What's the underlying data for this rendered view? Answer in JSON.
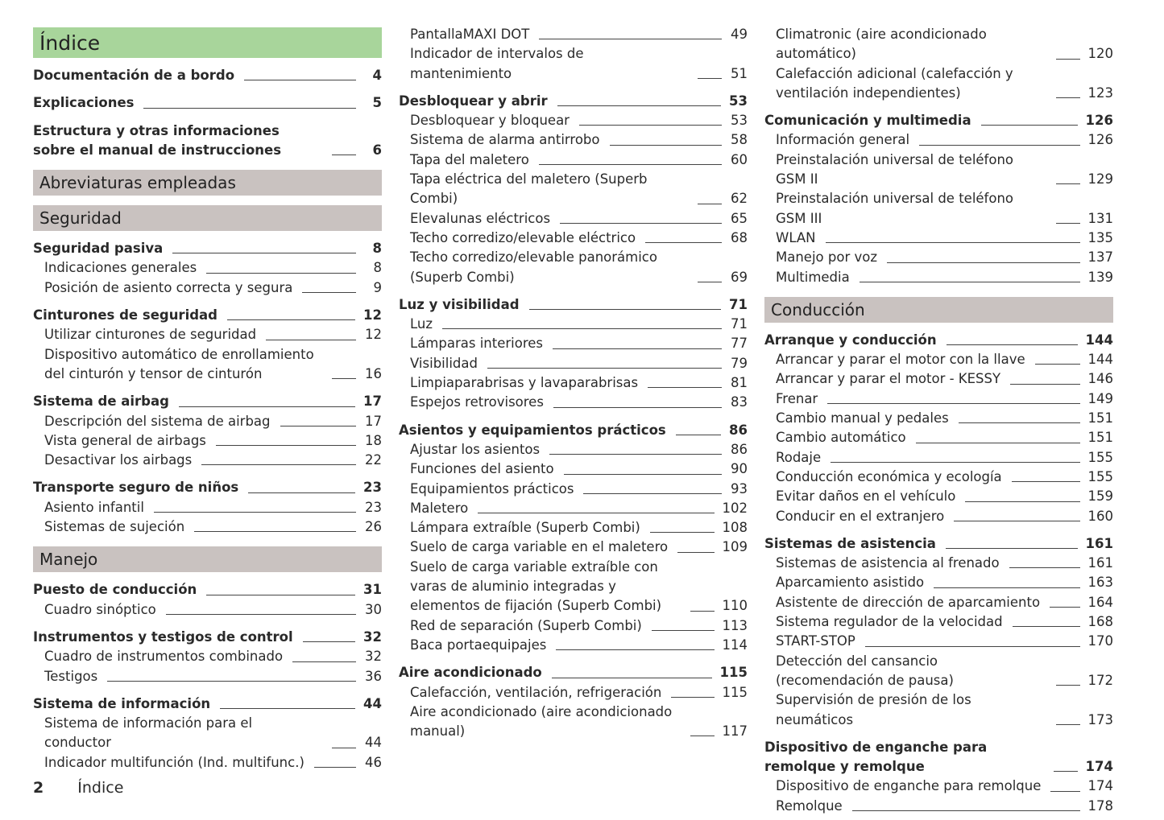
{
  "title": "Índice",
  "columns": [
    {
      "blocks": [
        {
          "group": "Documentación de a bordo",
          "page": "4"
        },
        {
          "group": "Explicaciones",
          "page": "5"
        },
        {
          "group": "Estructura y otras informaciones sobre el manual de instrucciones",
          "page": "6"
        },
        {
          "section": "Abreviaturas empleadas"
        },
        {
          "section": "Seguridad"
        },
        {
          "group": "Seguridad pasiva",
          "page": "8",
          "entries": [
            {
              "text": "Indicaciones generales",
              "page": "8"
            },
            {
              "text": "Posición de asiento correcta y segura",
              "page": "9"
            }
          ]
        },
        {
          "group": "Cinturones de seguridad",
          "page": "12",
          "entries": [
            {
              "text": "Utilizar cinturones de seguridad",
              "page": "12"
            },
            {
              "text": "Dispositivo automático de enrollamiento del cinturón y tensor de cinturón",
              "page": "16"
            }
          ]
        },
        {
          "group": "Sistema de airbag",
          "page": "17",
          "entries": [
            {
              "text": "Descripción del sistema de airbag",
              "page": "17"
            },
            {
              "text": "Vista general de airbags",
              "page": "18"
            },
            {
              "text": "Desactivar los airbags",
              "page": "22"
            }
          ]
        },
        {
          "group": "Transporte seguro de niños",
          "page": "23",
          "entries": [
            {
              "text": "Asiento infantil",
              "page": "23"
            },
            {
              "text": "Sistemas de sujeción",
              "page": "26"
            }
          ]
        },
        {
          "section": "Manejo"
        },
        {
          "group": "Puesto de conducción",
          "page": "31",
          "entries": [
            {
              "text": "Cuadro sinóptico",
              "page": "30"
            }
          ]
        },
        {
          "group": "Instrumentos y testigos de control",
          "page": "32",
          "entries": [
            {
              "text": "Cuadro de instrumentos combinado",
              "page": "32"
            },
            {
              "text": "Testigos",
              "page": "36"
            }
          ]
        },
        {
          "group": "Sistema de información",
          "page": "44",
          "entries": [
            {
              "text": "Sistema de información para el conductor",
              "page": "44"
            },
            {
              "text": "Indicador multifunción (Ind. multifunc.)",
              "page": "46"
            }
          ]
        }
      ]
    },
    {
      "blocks": [
        {
          "entries": [
            {
              "text": "PantallaMAXI DOT",
              "page": "49"
            },
            {
              "text": "Indicador de intervalos de mantenimiento",
              "page": "51"
            }
          ]
        },
        {
          "group": "Desbloquear y abrir",
          "page": "53",
          "entries": [
            {
              "text": "Desbloquear y bloquear",
              "page": "53"
            },
            {
              "text": "Sistema de alarma antirrobo",
              "page": "58"
            },
            {
              "text": "Tapa del maletero",
              "page": "60"
            },
            {
              "text": "Tapa eléctrica del maletero (Superb Combi)",
              "page": "62"
            },
            {
              "text": "Elevalunas eléctricos",
              "page": "65"
            },
            {
              "text": "Techo corredizo/elevable eléctrico",
              "page": "68"
            },
            {
              "text": "Techo corredizo/elevable panorámico (Superb Combi)",
              "page": "69"
            }
          ]
        },
        {
          "group": "Luz y visibilidad",
          "page": "71",
          "entries": [
            {
              "text": "Luz",
              "page": "71"
            },
            {
              "text": "Lámparas interiores",
              "page": "77"
            },
            {
              "text": "Visibilidad",
              "page": "79"
            },
            {
              "text": "Limpiaparabrisas y lavaparabrisas",
              "page": "81"
            },
            {
              "text": "Espejos retrovisores",
              "page": "83"
            }
          ]
        },
        {
          "group": "Asientos y equipamientos prácticos",
          "page": "86",
          "entries": [
            {
              "text": "Ajustar los asientos",
              "page": "86"
            },
            {
              "text": "Funciones del asiento",
              "page": "90"
            },
            {
              "text": "Equipamientos prácticos",
              "page": "93"
            },
            {
              "text": "Maletero",
              "page": "102"
            },
            {
              "text": "Lámpara extraíble (Superb Combi)",
              "page": "108"
            },
            {
              "text": "Suelo de carga variable en el maletero",
              "page": "109"
            },
            {
              "text": "Suelo de carga variable extraíble con varas de aluminio integradas y elementos de fijación (Superb Combi)",
              "page": "110"
            },
            {
              "text": "Red de separación (Superb Combi)",
              "page": "113"
            },
            {
              "text": "Baca portaequipajes",
              "page": "114"
            }
          ]
        },
        {
          "group": "Aire acondicionado",
          "page": "115",
          "entries": [
            {
              "text": "Calefacción, ventilación, refrigeración",
              "page": "115"
            },
            {
              "text": "Aire acondicionado (aire acondicionado manual)",
              "page": "117"
            }
          ]
        }
      ]
    },
    {
      "blocks": [
        {
          "entries": [
            {
              "text": "Climatronic (aire acondicionado automático)",
              "page": "120"
            },
            {
              "text": "Calefacción adicional (calefacción y ventilación independientes)",
              "page": "123"
            }
          ]
        },
        {
          "group": "Comunicación y multimedia",
          "page": "126",
          "entries": [
            {
              "text": "Información general",
              "page": "126"
            },
            {
              "text": "Preinstalación universal de teléfono GSM II",
              "page": "129"
            },
            {
              "text": "Preinstalación universal de teléfono GSM III",
              "page": "131"
            },
            {
              "text": "WLAN",
              "page": "135"
            },
            {
              "text": "Manejo por voz",
              "page": "137"
            },
            {
              "text": "Multimedia",
              "page": "139"
            }
          ]
        },
        {
          "section": "Conducción"
        },
        {
          "group": "Arranque y conducción",
          "page": "144",
          "entries": [
            {
              "text": "Arrancar y parar el motor con la llave",
              "page": "144"
            },
            {
              "text": "Arrancar y parar el motor - KESSY",
              "page": "146"
            },
            {
              "text": "Frenar",
              "page": "149"
            },
            {
              "text": "Cambio manual y pedales",
              "page": "151"
            },
            {
              "text": "Cambio automático",
              "page": "151"
            },
            {
              "text": "Rodaje",
              "page": "155"
            },
            {
              "text": "Conducción económica y ecología",
              "page": "155"
            },
            {
              "text": "Evitar daños en el vehículo",
              "page": "159"
            },
            {
              "text": "Conducir en el extranjero",
              "page": "160"
            }
          ]
        },
        {
          "group": "Sistemas de asistencia",
          "page": "161",
          "entries": [
            {
              "text": "Sistemas de asistencia al frenado",
              "page": "161"
            },
            {
              "text": "Aparcamiento asistido",
              "page": "163"
            },
            {
              "text": "Asistente de dirección de aparcamiento",
              "page": "164"
            },
            {
              "text": "Sistema regulador de la velocidad",
              "page": "168"
            },
            {
              "text": "START-STOP",
              "page": "170"
            },
            {
              "text": "Detección del cansancio (recomendación de pausa)",
              "page": "172"
            },
            {
              "text": "Supervisión de presión de los neumáticos",
              "page": "173"
            }
          ]
        },
        {
          "group": "Dispositivo de enganche para remolque y remolque",
          "page": "174",
          "entries": [
            {
              "text": "Dispositivo de enganche para remolque",
              "page": "174"
            },
            {
              "text": "Remolque",
              "page": "178"
            }
          ]
        }
      ]
    }
  ],
  "footer": {
    "page_number": "2",
    "title": "Índice"
  }
}
